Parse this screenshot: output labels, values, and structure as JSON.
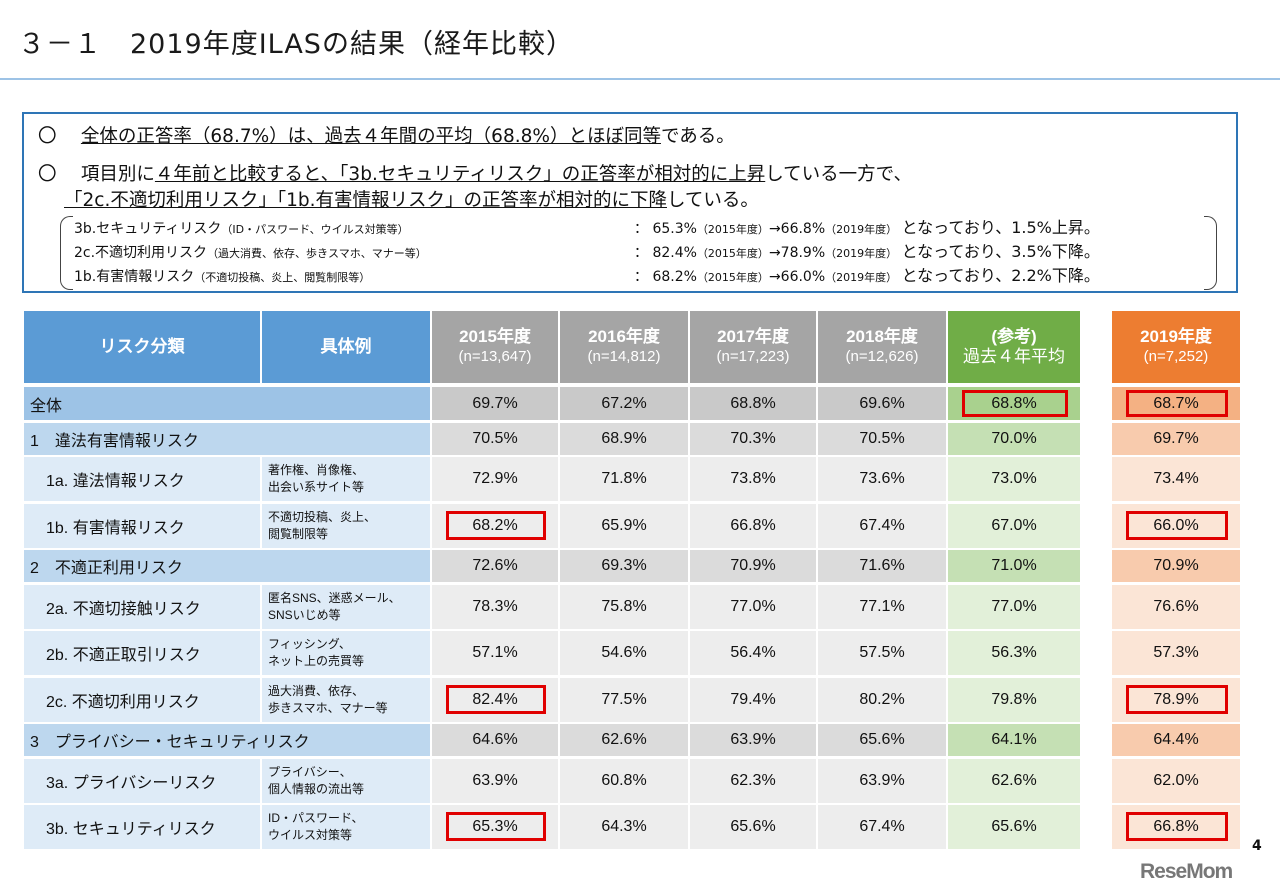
{
  "title": "３－１　2019年度ILASの結果（経年比較）",
  "summary": {
    "bullet1": {
      "mark": "〇",
      "underlined": "全体の正答率（68.7%）は、過去４年間の平均（68.8%）とほぼ同等",
      "rest": "である。"
    },
    "bullet2": {
      "mark": "〇",
      "pre": "項目別に",
      "underlined1": "４年前と比較すると、「3b.セキュリティリスク」の正答率が相対的に上昇",
      "rest1": "している一方で、"
    },
    "bullet2_line2": {
      "underlined": "「2c.不適切利用リスク」「1b.有害情報リスク」の正答率が相対的に下降",
      "rest": "している。"
    },
    "details": [
      {
        "name": "3b.セキュリティリスク",
        "note": "（ID・パスワード、ウイルス対策等）",
        "colon": "：",
        "from": "65.3%",
        "from_year": "（2015年度）",
        "arrow": "→",
        "to": "66.8%",
        "to_year": "（2019年度）",
        "result": "となっており、1.5%上昇。"
      },
      {
        "name": "2c.不適切利用リスク",
        "note": "（過大消費、依存、歩きスマホ、マナー等）",
        "colon": "：",
        "from": "82.4%",
        "from_year": "（2015年度）",
        "arrow": "→",
        "to": "78.9%",
        "to_year": "（2019年度）",
        "result": "となっており、3.5%下降。"
      },
      {
        "name": "1b.有害情報リスク",
        "note": "（不適切投稿、炎上、閲覧制限等）",
        "colon": "：",
        "from": "68.2%",
        "from_year": "（2015年度）",
        "arrow": "→",
        "to": "66.0%",
        "to_year": "（2019年度）",
        "result": "となっており、2.2%下降。"
      }
    ]
  },
  "table": {
    "headers": {
      "category": "リスク分類",
      "example": "具体例",
      "years": [
        {
          "label": "2015年度",
          "sub": "(n=13,647)"
        },
        {
          "label": "2016年度",
          "sub": "(n=14,812)"
        },
        {
          "label": "2017年度",
          "sub": "(n=17,223)"
        },
        {
          "label": "2018年度",
          "sub": "(n=12,626)"
        },
        {
          "label": "(参考)",
          "sub": "過去４年平均"
        },
        {
          "label": "2019年度",
          "sub": "(n=7,252)"
        }
      ]
    },
    "colors": {
      "blue": "#5b9bd5",
      "gray": "#a5a5a5",
      "green": "#70ad47",
      "orange": "#ed7d31",
      "highlight": "#e00000"
    },
    "rows": [
      {
        "type": "total",
        "label": "全体",
        "example": "",
        "values": [
          "69.7%",
          "67.2%",
          "68.8%",
          "69.6%",
          "68.8%",
          "68.7%"
        ],
        "highlight": [
          4,
          5
        ]
      },
      {
        "type": "group",
        "label": "1　違法有害情報リスク",
        "example": "",
        "values": [
          "70.5%",
          "68.9%",
          "70.3%",
          "70.5%",
          "70.0%",
          "69.7%"
        ],
        "highlight": []
      },
      {
        "type": "sub",
        "label": "1a. 違法情報リスク",
        "example": "著作権、肖像権、\n出会い系サイト等",
        "values": [
          "72.9%",
          "71.8%",
          "73.8%",
          "73.6%",
          "73.0%",
          "73.4%"
        ],
        "highlight": []
      },
      {
        "type": "sub",
        "label": "1b. 有害情報リスク",
        "example": "不適切投稿、炎上、\n閲覧制限等",
        "values": [
          "68.2%",
          "65.9%",
          "66.8%",
          "67.4%",
          "67.0%",
          "66.0%"
        ],
        "highlight": [
          0,
          5
        ]
      },
      {
        "type": "group",
        "label": "2　不適正利用リスク",
        "example": "",
        "values": [
          "72.6%",
          "69.3%",
          "70.9%",
          "71.6%",
          "71.0%",
          "70.9%"
        ],
        "highlight": []
      },
      {
        "type": "sub",
        "label": "2a. 不適切接触リスク",
        "example": "匿名SNS、迷惑メール、\nSNSいじめ等",
        "values": [
          "78.3%",
          "75.8%",
          "77.0%",
          "77.1%",
          "77.0%",
          "76.6%"
        ],
        "highlight": []
      },
      {
        "type": "sub",
        "label": "2b. 不適正取引リスク",
        "example": "フィッシング、\nネット上の売買等",
        "values": [
          "57.1%",
          "54.6%",
          "56.4%",
          "57.5%",
          "56.3%",
          "57.3%"
        ],
        "highlight": []
      },
      {
        "type": "sub",
        "label": "2c. 不適切利用リスク",
        "example": "過大消費、依存、\n歩きスマホ、マナー等",
        "values": [
          "82.4%",
          "77.5%",
          "79.4%",
          "80.2%",
          "79.8%",
          "78.9%"
        ],
        "highlight": [
          0,
          5
        ]
      },
      {
        "type": "group",
        "label": "3　プライバシー・セキュリティリスク",
        "example": "",
        "values": [
          "64.6%",
          "62.6%",
          "63.9%",
          "65.6%",
          "64.1%",
          "64.4%"
        ],
        "highlight": []
      },
      {
        "type": "sub",
        "label": "3a. プライバシーリスク",
        "example": "プライバシー、\n個人情報の流出等",
        "values": [
          "63.9%",
          "60.8%",
          "62.3%",
          "63.9%",
          "62.6%",
          "62.0%"
        ],
        "highlight": []
      },
      {
        "type": "sub",
        "label": "3b. セキュリティリスク",
        "example": "ID・パスワード、\nウイルス対策等",
        "values": [
          "65.3%",
          "64.3%",
          "65.6%",
          "67.4%",
          "65.6%",
          "66.8%"
        ],
        "highlight": [
          0,
          5
        ]
      }
    ]
  },
  "footer": {
    "logo": "ReseMom",
    "page": "4"
  }
}
